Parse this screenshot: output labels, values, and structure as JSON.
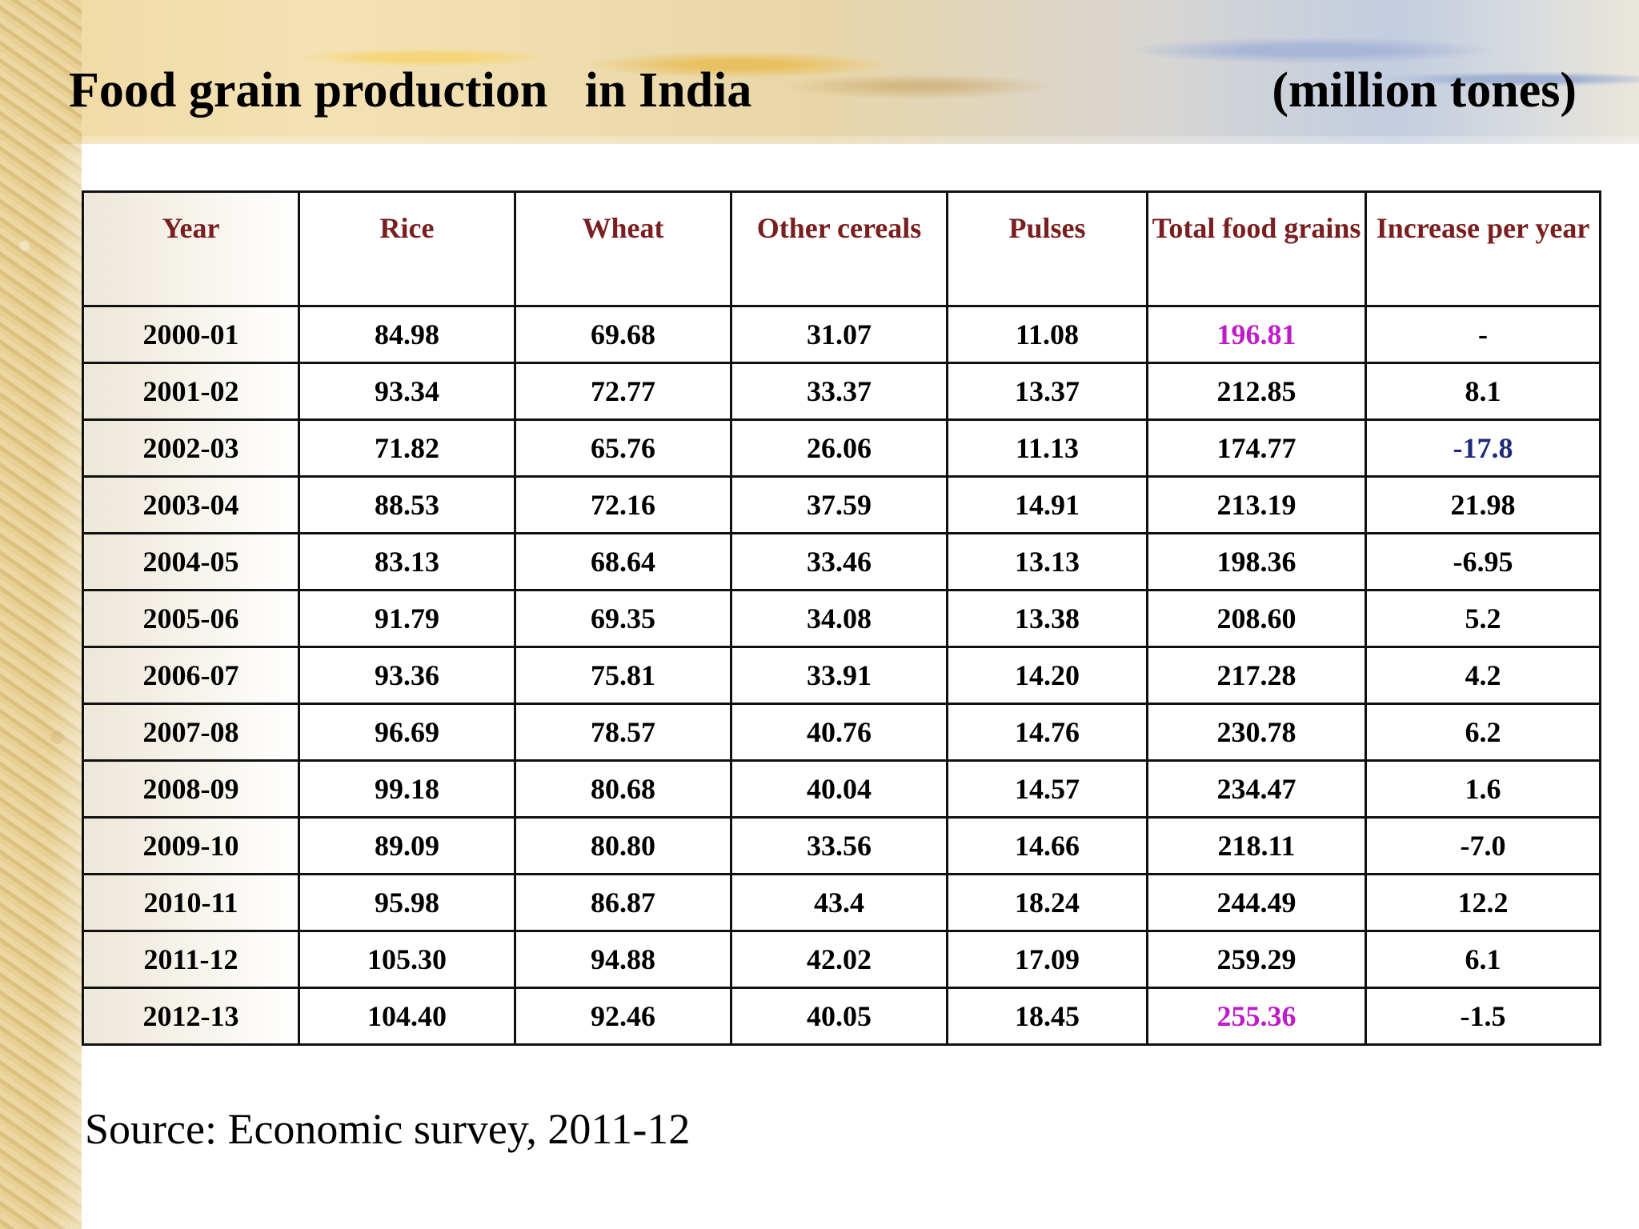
{
  "slide": {
    "title": "Food grain production   in India",
    "unit": "(million tones)",
    "source": "Source: Economic survey, 2011-12"
  },
  "table": {
    "headers": [
      "Year",
      "Rice",
      "Wheat",
      "Other cereals",
      "Pulses",
      "Total food grains",
      "Increase per year"
    ],
    "rows": [
      [
        "2000-01",
        "84.98",
        "69.68",
        "31.07",
        "11.08",
        "196.81",
        "-"
      ],
      [
        "2001-02",
        "93.34",
        "72.77",
        "33.37",
        "13.37",
        "212.85",
        "8.1"
      ],
      [
        "2002-03",
        "71.82",
        "65.76",
        "26.06",
        "11.13",
        "174.77",
        "-17.8"
      ],
      [
        "2003-04",
        "88.53",
        "72.16",
        "37.59",
        "14.91",
        "213.19",
        "21.98"
      ],
      [
        "2004-05",
        "83.13",
        "68.64",
        "33.46",
        "13.13",
        "198.36",
        "-6.95"
      ],
      [
        "2005-06",
        "91.79",
        "69.35",
        "34.08",
        "13.38",
        "208.60",
        "5.2"
      ],
      [
        "2006-07",
        "93.36",
        "75.81",
        "33.91",
        "14.20",
        "217.28",
        "4.2"
      ],
      [
        "2007-08",
        "96.69",
        "78.57",
        "40.76",
        "14.76",
        "230.78",
        "6.2"
      ],
      [
        "2008-09",
        "99.18",
        "80.68",
        "40.04",
        "14.57",
        "234.47",
        "1.6"
      ],
      [
        "2009-10",
        "89.09",
        "80.80",
        "33.56",
        "14.66",
        "218.11",
        "-7.0"
      ],
      [
        "2010-11",
        "95.98",
        "86.87",
        "43.4",
        "18.24",
        "244.49",
        "12.2"
      ],
      [
        "2011-12",
        "105.30",
        "94.88",
        "42.02",
        "17.09",
        "259.29",
        "6.1"
      ],
      [
        "2012-13",
        "104.40",
        "92.46",
        "40.05",
        "18.45",
        "255.36",
        "-1.5"
      ]
    ]
  },
  "colors": {
    "header_text": "#7a1f1f",
    "highlight_magenta": "#c01bc8",
    "highlight_navy": "#1f2b7a"
  }
}
